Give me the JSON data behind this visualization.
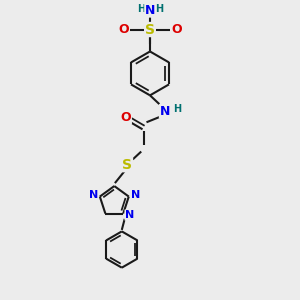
{
  "bg_color": "#ececec",
  "bond_color": "#1a1a1a",
  "bond_width": 1.5,
  "atom_colors": {
    "C": "#1a1a1a",
    "N": "#0000ee",
    "O": "#dd0000",
    "S_sulfo": "#bbbb00",
    "S_thio": "#bbbb00",
    "H": "#007070"
  },
  "font_size": 8,
  "fig_size": [
    3.0,
    3.0
  ],
  "dpi": 100,
  "xlim": [
    0,
    10
  ],
  "ylim": [
    0,
    10
  ]
}
